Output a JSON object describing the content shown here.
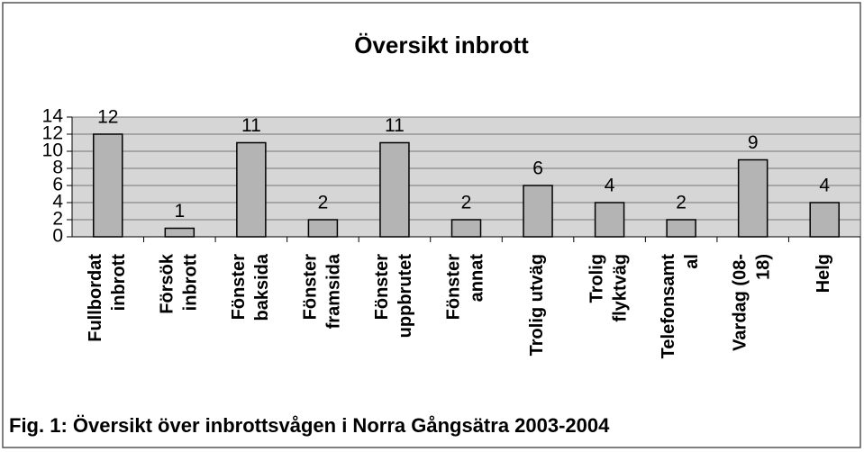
{
  "chart_data": {
    "type": "bar",
    "title": "Översikt inbrott",
    "categories": [
      "Fullbordat\ninbrott",
      "Försök\ninbrott",
      "Fönster\nbaksida",
      "Fönster\nframsida",
      "Fönster\nuppbrutet",
      "Fönster\nannat",
      "Trolig utväg",
      "Trolig\nflyktväg",
      "Telefonsamt\nal",
      "Vardag (08-\n18)",
      "Helg"
    ],
    "values": [
      12,
      1,
      11,
      2,
      11,
      2,
      6,
      4,
      2,
      9,
      4
    ],
    "color": "#b4b4b4",
    "ylim": [
      0,
      14
    ],
    "yticks": [
      0,
      2,
      4,
      6,
      8,
      10,
      12,
      14
    ],
    "grid": true,
    "caption": "Fig. 1: Översikt över inbrottsvågen i Norra Gångsätra 2003-2004"
  }
}
